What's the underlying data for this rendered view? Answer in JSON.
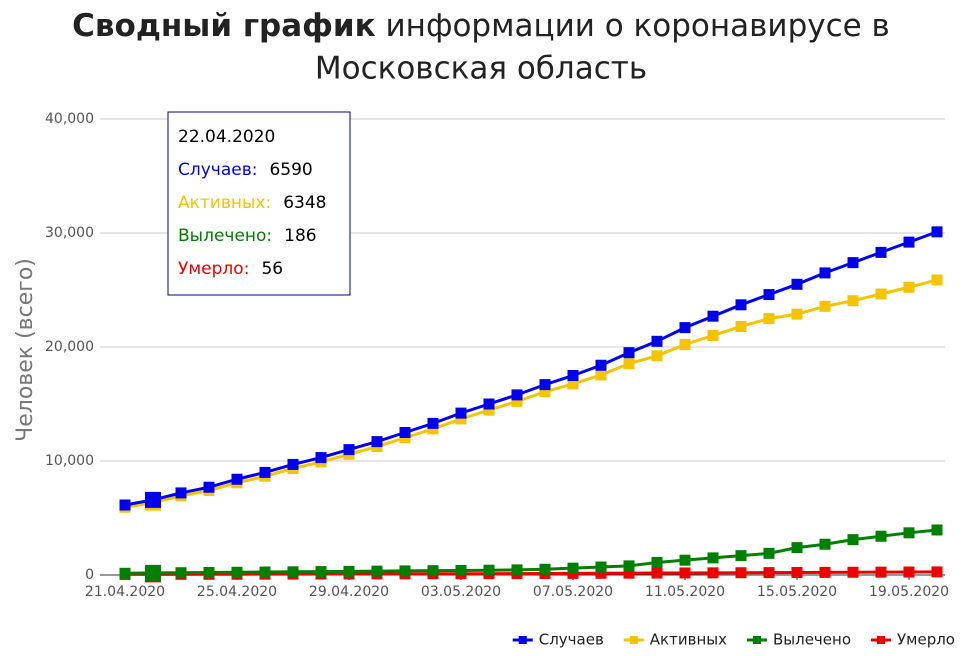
{
  "chart_data": {
    "type": "line",
    "title_bold": "Сводный график",
    "title": "информации о коронавирусе в Московская область",
    "y_label": "Человек (всего)",
    "categories": [
      "21.04.2020",
      "22.04.2020",
      null,
      null,
      "25.04.2020",
      null,
      null,
      null,
      "29.04.2020",
      null,
      null,
      null,
      "03.05.2020",
      null,
      null,
      null,
      "07.05.2020",
      null,
      null,
      null,
      "11.05.2020",
      null,
      null,
      null,
      "15.05.2020",
      null,
      null,
      null,
      "19.05.2020",
      null
    ],
    "ylim": [
      0,
      40000
    ],
    "yticks": [
      0,
      {
        "value": 10000,
        "label": "10,000"
      },
      {
        "value": 20000,
        "label": "20,000"
      },
      {
        "value": 30000,
        "label": "30,000"
      },
      {
        "value": 40000,
        "label": "40,000"
      }
    ],
    "grid": true,
    "legend": "bottom-right",
    "hover_index": 1,
    "series": [
      {
        "name": "Случаев",
        "tooltip_label": "Случаев:",
        "color": "#0000ee",
        "values": [
          6140,
          6590,
          7200,
          7700,
          8400,
          9000,
          9700,
          10300,
          11000,
          11700,
          12500,
          13300,
          14200,
          15000,
          15800,
          16700,
          17500,
          18400,
          19500,
          20500,
          21700,
          22700,
          23700,
          24600,
          25500,
          26500,
          27400,
          28300,
          29200,
          30100
        ]
      },
      {
        "name": "Активных",
        "tooltip_label": "Активных:",
        "color": "#f5c400",
        "values": [
          5940,
          6348,
          6940,
          7415,
          8090,
          8665,
          9340,
          9915,
          10590,
          11265,
          12040,
          12815,
          13690,
          14465,
          15230,
          16070,
          16760,
          17550,
          18540,
          19230,
          20220,
          21010,
          21800,
          22490,
          22880,
          23570,
          24060,
          24650,
          25240,
          25880
        ]
      },
      {
        "name": "Вылечено",
        "tooltip_label": "Вылечено:",
        "color": "#008000",
        "values": [
          150,
          186,
          200,
          220,
          240,
          260,
          280,
          300,
          320,
          340,
          360,
          380,
          400,
          420,
          450,
          500,
          600,
          700,
          800,
          1100,
          1300,
          1500,
          1700,
          1900,
          2400,
          2700,
          3100,
          3400,
          3700,
          3950
        ]
      },
      {
        "name": "Умерло",
        "tooltip_label": "Умерло:",
        "color": "#ee0000",
        "values": [
          50,
          56,
          60,
          65,
          70,
          75,
          80,
          85,
          90,
          95,
          100,
          105,
          110,
          115,
          120,
          130,
          140,
          150,
          160,
          170,
          180,
          190,
          200,
          210,
          220,
          230,
          240,
          250,
          260,
          270
        ]
      }
    ]
  }
}
